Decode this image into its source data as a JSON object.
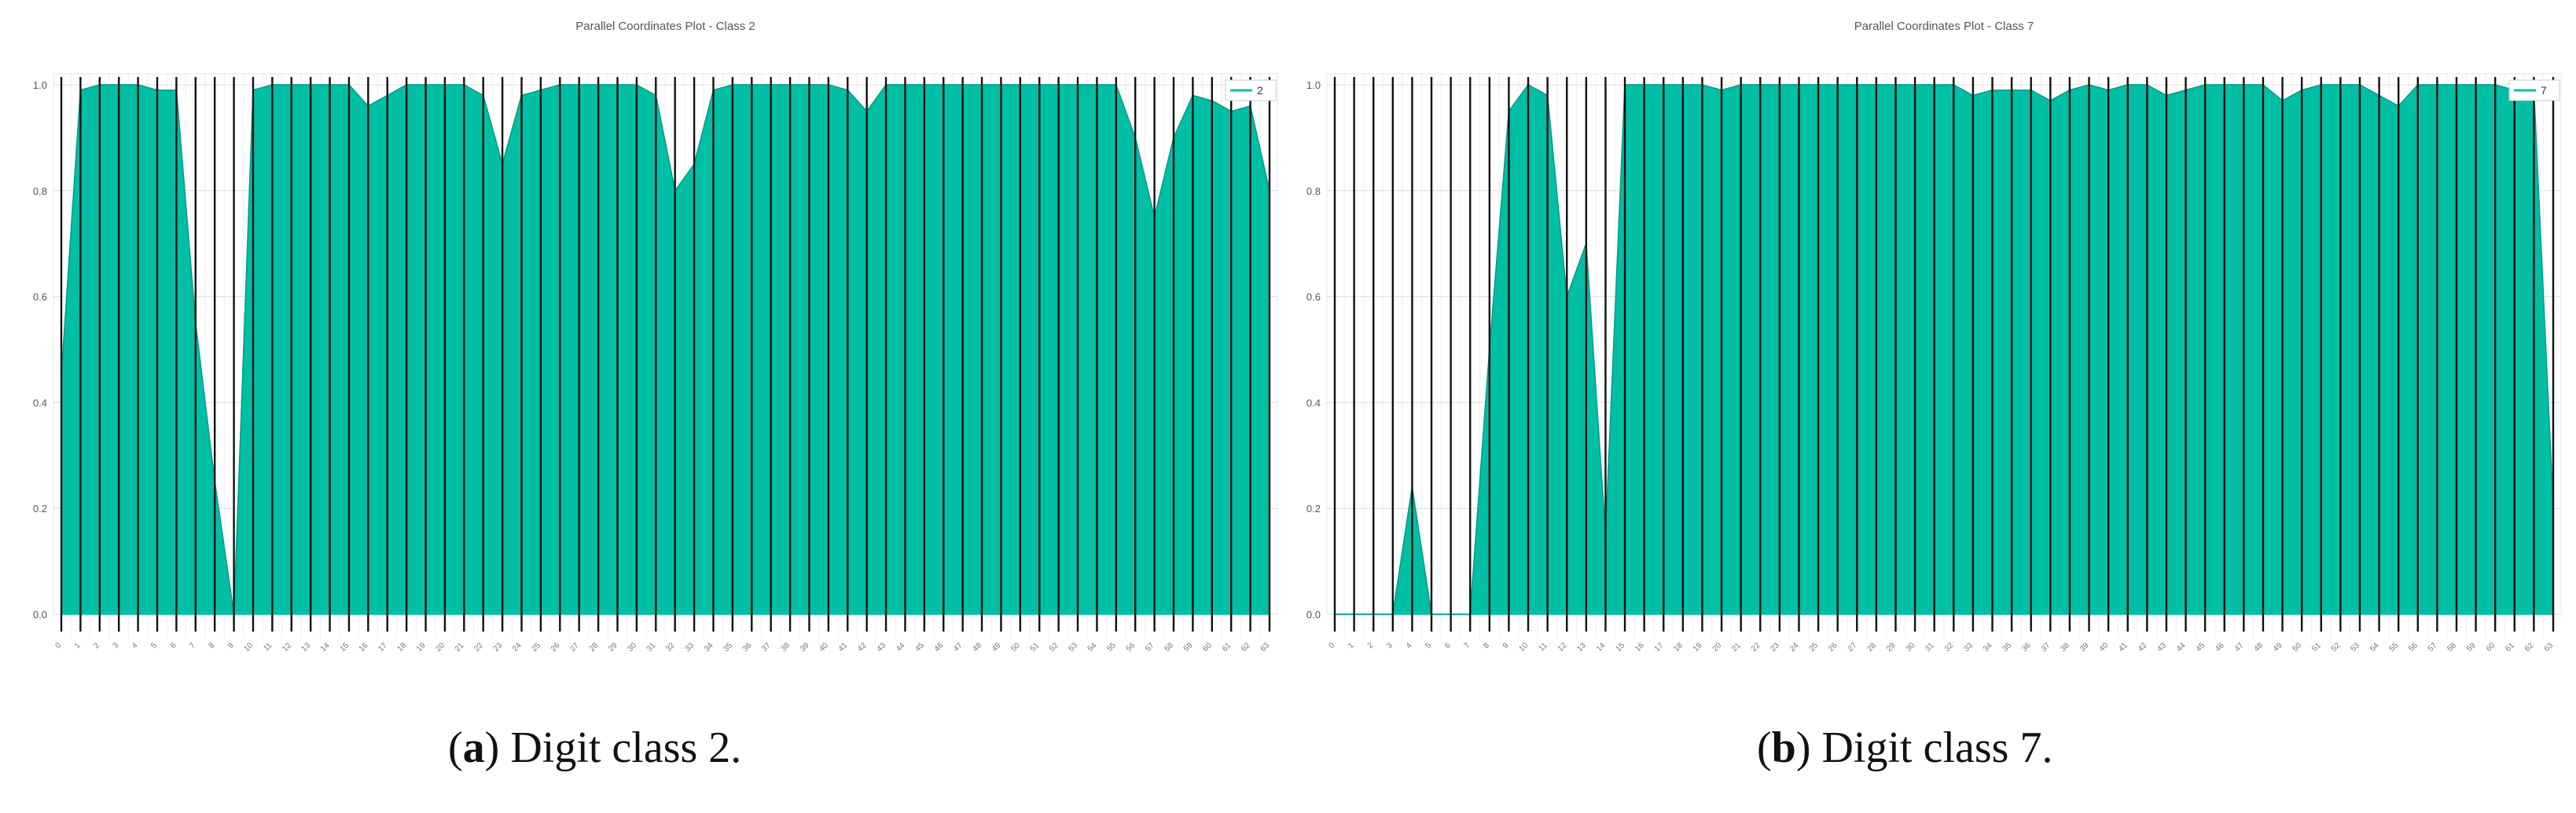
{
  "panels": [
    {
      "caption": {
        "open": "(",
        "letter": "a",
        "close": ")",
        "text": " Digit class 2."
      }
    },
    {
      "caption": {
        "open": "(",
        "letter": "b",
        "close": ")",
        "text": " Digit class 7."
      }
    }
  ],
  "colors": {
    "series": "#00bfa5",
    "axis_line": "#111111",
    "grid": "#dcdcdc",
    "text": "#555555"
  },
  "chart_data": [
    {
      "type": "line",
      "subtype": "parallel-coordinates",
      "title": "Parallel Coordinates Plot - Class 2",
      "series": [
        {
          "name": "2"
        }
      ],
      "legend_position": "top-right",
      "grid": true,
      "ylim": [
        0.0,
        1.0
      ],
      "yticks": [
        "0.0",
        "0.2",
        "0.4",
        "0.6",
        "0.8",
        "1.0"
      ],
      "x_dimensions_count": 64,
      "upper_envelope": [
        0.45,
        0.99,
        1.0,
        1.0,
        1.0,
        0.99,
        0.99,
        0.55,
        0.25,
        0.0,
        0.99,
        1.0,
        1.0,
        1.0,
        1.0,
        1.0,
        0.96,
        0.98,
        1.0,
        1.0,
        1.0,
        1.0,
        0.98,
        0.85,
        0.98,
        0.99,
        1.0,
        1.0,
        1.0,
        1.0,
        1.0,
        0.98,
        0.8,
        0.85,
        0.99,
        1.0,
        1.0,
        1.0,
        1.0,
        1.0,
        1.0,
        0.99,
        0.95,
        1.0,
        1.0,
        1.0,
        1.0,
        1.0,
        1.0,
        1.0,
        1.0,
        1.0,
        1.0,
        1.0,
        1.0,
        1.0,
        0.9,
        0.75,
        0.9,
        0.98,
        0.97,
        0.95,
        0.96,
        0.8
      ],
      "lower_envelope": [
        0.0,
        0.0,
        0.0,
        0.0,
        0.0,
        0.0,
        0.0,
        0.0,
        0.0,
        0.0,
        0.0,
        0.0,
        0.0,
        0.0,
        0.0,
        0.0,
        0.0,
        0.0,
        0.0,
        0.0,
        0.0,
        0.0,
        0.0,
        0.0,
        0.0,
        0.0,
        0.0,
        0.0,
        0.0,
        0.0,
        0.0,
        0.0,
        0.0,
        0.0,
        0.0,
        0.0,
        0.0,
        0.0,
        0.0,
        0.0,
        0.0,
        0.0,
        0.0,
        0.0,
        0.0,
        0.0,
        0.0,
        0.0,
        0.0,
        0.0,
        0.0,
        0.0,
        0.0,
        0.0,
        0.0,
        0.0,
        0.0,
        0.0,
        0.0,
        0.0,
        0.0,
        0.0,
        0.0,
        0.0
      ]
    },
    {
      "type": "line",
      "subtype": "parallel-coordinates",
      "title": "Parallel Coordinates Plot - Class 7",
      "series": [
        {
          "name": "7"
        }
      ],
      "legend_position": "top-right",
      "grid": true,
      "ylim": [
        0.0,
        1.0
      ],
      "yticks": [
        "0.0",
        "0.2",
        "0.4",
        "0.6",
        "0.8",
        "1.0"
      ],
      "x_dimensions_count": 64,
      "upper_envelope": [
        0.0,
        0.0,
        0.0,
        0.0,
        0.24,
        0.0,
        0.0,
        0.0,
        0.5,
        0.95,
        1.0,
        0.98,
        0.6,
        0.7,
        0.15,
        1.0,
        1.0,
        1.0,
        1.0,
        1.0,
        0.99,
        1.0,
        1.0,
        1.0,
        1.0,
        1.0,
        1.0,
        1.0,
        1.0,
        1.0,
        1.0,
        1.0,
        1.0,
        0.98,
        0.99,
        0.99,
        0.99,
        0.97,
        0.99,
        1.0,
        0.99,
        1.0,
        1.0,
        0.98,
        0.99,
        1.0,
        1.0,
        1.0,
        1.0,
        0.97,
        0.99,
        1.0,
        1.0,
        1.0,
        0.98,
        0.96,
        1.0,
        1.0,
        1.0,
        1.0,
        1.0,
        0.99,
        0.99,
        0.2
      ],
      "lower_envelope": [
        0.0,
        0.0,
        0.0,
        0.0,
        0.0,
        0.0,
        0.0,
        0.0,
        0.0,
        0.0,
        0.0,
        0.0,
        0.0,
        0.0,
        0.0,
        0.0,
        0.0,
        0.0,
        0.0,
        0.0,
        0.0,
        0.0,
        0.0,
        0.0,
        0.0,
        0.0,
        0.0,
        0.0,
        0.0,
        0.0,
        0.0,
        0.0,
        0.0,
        0.0,
        0.0,
        0.0,
        0.0,
        0.0,
        0.0,
        0.0,
        0.0,
        0.0,
        0.0,
        0.0,
        0.0,
        0.0,
        0.0,
        0.0,
        0.0,
        0.0,
        0.0,
        0.0,
        0.0,
        0.0,
        0.0,
        0.0,
        0.0,
        0.0,
        0.0,
        0.0,
        0.0,
        0.0,
        0.0,
        0.0
      ]
    }
  ]
}
